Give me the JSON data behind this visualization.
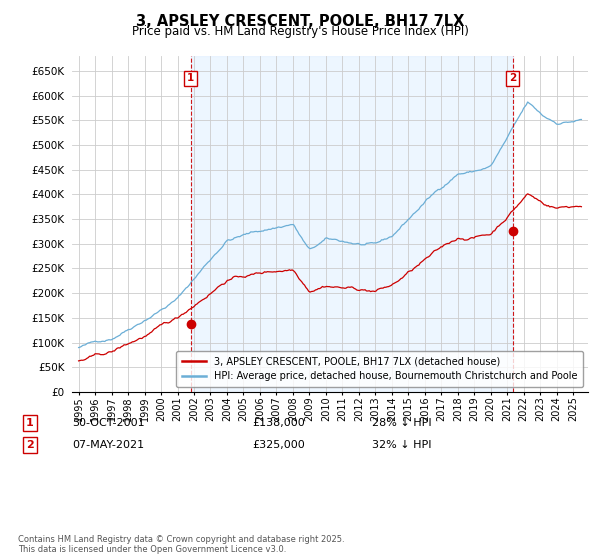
{
  "title": "3, APSLEY CRESCENT, POOLE, BH17 7LX",
  "subtitle": "Price paid vs. HM Land Registry's House Price Index (HPI)",
  "ylabel_ticks": [
    "£0",
    "£50K",
    "£100K",
    "£150K",
    "£200K",
    "£250K",
    "£300K",
    "£350K",
    "£400K",
    "£450K",
    "£500K",
    "£550K",
    "£600K",
    "£650K"
  ],
  "ytick_values": [
    0,
    50000,
    100000,
    150000,
    200000,
    250000,
    300000,
    350000,
    400000,
    450000,
    500000,
    550000,
    600000,
    650000
  ],
  "ylim": [
    0,
    680000
  ],
  "legend_line1": "3, APSLEY CRESCENT, POOLE, BH17 7LX (detached house)",
  "legend_line2": "HPI: Average price, detached house, Bournemouth Christchurch and Poole",
  "marker1_label": "1",
  "marker1_date": "30-OCT-2001",
  "marker1_price": "£138,000",
  "marker1_hpi": "28% ↓ HPI",
  "marker2_label": "2",
  "marker2_date": "07-MAY-2021",
  "marker2_price": "£325,000",
  "marker2_hpi": "32% ↓ HPI",
  "footer": "Contains HM Land Registry data © Crown copyright and database right 2025.\nThis data is licensed under the Open Government Licence v3.0.",
  "hpi_color": "#6baed6",
  "price_color": "#cc0000",
  "marker_box_color": "#cc0000",
  "background_color": "#ffffff",
  "grid_color": "#cccccc",
  "shade_color": "#ddeeff"
}
